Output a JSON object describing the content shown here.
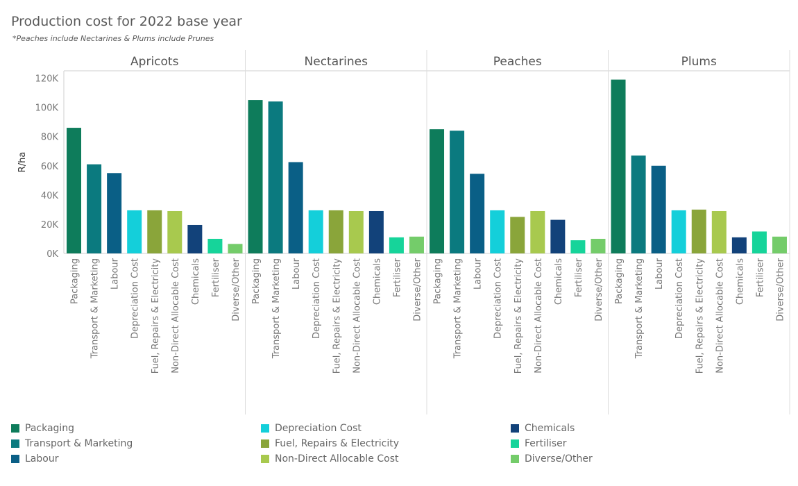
{
  "title": "Production cost for 2022 base year",
  "subtitle": "*Peaches include Nectarines & Plums include Prunes",
  "chart_data": {
    "type": "bar",
    "ylabel": "R/ha",
    "ylim": [
      0,
      125000
    ],
    "yticks": [
      0,
      20000,
      40000,
      60000,
      80000,
      100000,
      120000
    ],
    "ytick_labels": [
      "0K",
      "20K",
      "40K",
      "60K",
      "80K",
      "100K",
      "120K"
    ],
    "categories": [
      "Packaging",
      "Transport & Marketing",
      "Labour",
      "Depreciation Cost",
      "Fuel, Repairs & Electricity",
      "Non-Direct Allocable Cost",
      "Chemicals",
      "Fertiliser",
      "Diverse/Other"
    ],
    "colors": [
      "#0e7c5b",
      "#0b7a7f",
      "#0a5f86",
      "#14cfda",
      "#8aa53a",
      "#a8c94e",
      "#12427a",
      "#16d49a",
      "#74cc6a"
    ],
    "panels": [
      {
        "name": "Apricots",
        "values": [
          86000,
          61000,
          55000,
          29500,
          29500,
          29000,
          19500,
          10000,
          6500
        ]
      },
      {
        "name": "Nectarines",
        "values": [
          105000,
          104000,
          62500,
          29500,
          29500,
          29000,
          29000,
          11000,
          11500
        ]
      },
      {
        "name": "Peaches",
        "values": [
          85000,
          84000,
          54500,
          29500,
          25000,
          29000,
          23000,
          9000,
          10000
        ]
      },
      {
        "name": "Plums",
        "values": [
          119000,
          67000,
          60000,
          29500,
          30000,
          29000,
          11000,
          15000,
          11500
        ]
      }
    ]
  }
}
